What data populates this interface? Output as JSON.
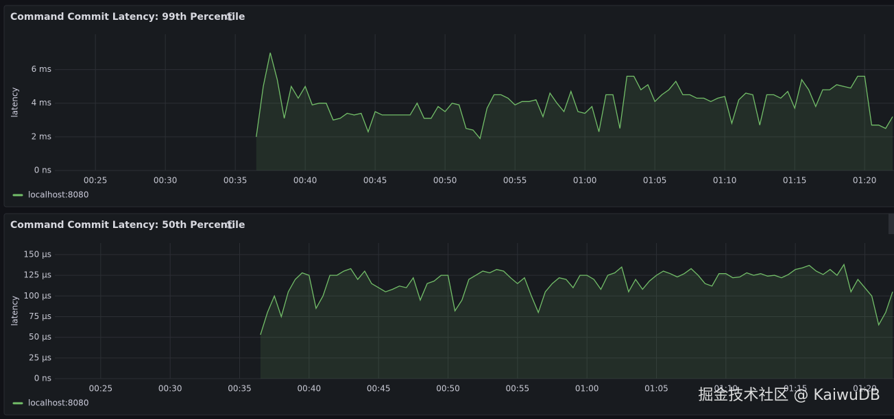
{
  "chart_data": [
    {
      "type": "line",
      "title": "Command Commit Latency: 99th Percentile",
      "y_label": "latency",
      "x": [
        36.5,
        37,
        37.5,
        38,
        38.5,
        39,
        39.5,
        40,
        40.5,
        41,
        41.5,
        42,
        42.5,
        43,
        43.5,
        44,
        44.5,
        45,
        45.5,
        46,
        46.5,
        47,
        47.5,
        48,
        48.5,
        49,
        49.5,
        50,
        50.5,
        51,
        51.5,
        52,
        52.5,
        53,
        53.5,
        54,
        54.5,
        55,
        55.5,
        56,
        56.5,
        57,
        57.5,
        58,
        58.5,
        59,
        59.5,
        60,
        60.5,
        61,
        61.5,
        62,
        62.5,
        63,
        63.5,
        64,
        64.5,
        65,
        65.5,
        66,
        66.5,
        67,
        67.5,
        68,
        68.5,
        69,
        69.5,
        70,
        70.5,
        71,
        71.5,
        72,
        72.5,
        73,
        73.5,
        74,
        74.5,
        75,
        75.5,
        76,
        76.5,
        77,
        77.5,
        78,
        78.5,
        79,
        79.5,
        80,
        80.5,
        81,
        81.5,
        82
      ],
      "series": [
        {
          "name": "localhost:8080",
          "color": "#73bf69",
          "values": [
            2.0,
            5.0,
            7.0,
            5.4,
            3.1,
            5.0,
            4.3,
            5.0,
            3.9,
            4.0,
            4.0,
            3.0,
            3.1,
            3.4,
            3.3,
            3.4,
            2.3,
            3.5,
            3.3,
            3.3,
            3.3,
            3.3,
            3.3,
            4.0,
            3.1,
            3.1,
            3.8,
            3.5,
            4.0,
            3.9,
            2.5,
            2.4,
            1.9,
            3.7,
            4.5,
            4.5,
            4.3,
            3.9,
            4.1,
            4.1,
            4.2,
            3.2,
            4.6,
            4.0,
            3.5,
            4.7,
            3.5,
            3.4,
            3.8,
            2.3,
            4.5,
            4.5,
            2.5,
            5.6,
            5.6,
            4.8,
            5.1,
            4.1,
            4.5,
            4.8,
            5.3,
            4.5,
            4.5,
            4.3,
            4.3,
            4.1,
            4.3,
            4.4,
            2.8,
            4.2,
            4.6,
            4.5,
            2.7,
            4.5,
            4.5,
            4.3,
            4.7,
            3.7,
            5.4,
            4.8,
            3.8,
            4.8,
            4.8,
            5.1,
            5.0,
            4.9,
            5.6,
            5.6,
            2.7,
            2.7,
            2.5,
            3.2
          ]
        }
      ],
      "xlim": [
        22.1,
        82.1
      ],
      "xticks": [
        {
          "value": 25,
          "label": "00:25"
        },
        {
          "value": 30,
          "label": "00:30"
        },
        {
          "value": 35,
          "label": "00:35"
        },
        {
          "value": 40,
          "label": "00:40"
        },
        {
          "value": 45,
          "label": "00:45"
        },
        {
          "value": 50,
          "label": "00:50"
        },
        {
          "value": 55,
          "label": "00:55"
        },
        {
          "value": 60,
          "label": "01:00"
        },
        {
          "value": 65,
          "label": "01:05"
        },
        {
          "value": 70,
          "label": "01:10"
        },
        {
          "value": 75,
          "label": "01:15"
        },
        {
          "value": 80,
          "label": "01:20"
        }
      ],
      "ylim": [
        0,
        8.1
      ],
      "yticks": [
        {
          "value": 0,
          "label": "0 ns"
        },
        {
          "value": 2,
          "label": "2 ms"
        },
        {
          "value": 4,
          "label": "4 ms"
        },
        {
          "value": 6,
          "label": "6 ms"
        }
      ],
      "grid": true,
      "legend": "bottom-left"
    },
    {
      "type": "line",
      "title": "Command Commit Latency: 50th Percentile",
      "y_label": "latency",
      "x": [
        36.5,
        37,
        37.5,
        38,
        38.5,
        39,
        39.5,
        40,
        40.5,
        41,
        41.5,
        42,
        42.5,
        43,
        43.5,
        44,
        44.5,
        45,
        45.5,
        46,
        46.5,
        47,
        47.5,
        48,
        48.5,
        49,
        49.5,
        50,
        50.5,
        51,
        51.5,
        52,
        52.5,
        53,
        53.5,
        54,
        54.5,
        55,
        55.5,
        56,
        56.5,
        57,
        57.5,
        58,
        58.5,
        59,
        59.5,
        60,
        60.5,
        61,
        61.5,
        62,
        62.5,
        63,
        63.5,
        64,
        64.5,
        65,
        65.5,
        66,
        66.5,
        67,
        67.5,
        68,
        68.5,
        69,
        69.5,
        70,
        70.5,
        71,
        71.5,
        72,
        72.5,
        73,
        73.5,
        74,
        74.5,
        75,
        75.5,
        76,
        76.5,
        77,
        77.5,
        78,
        78.5,
        79,
        79.5,
        80,
        80.5,
        81,
        81.5,
        82
      ],
      "series": [
        {
          "name": "localhost:8080",
          "color": "#73bf69",
          "values": [
            53,
            80,
            100,
            75,
            105,
            120,
            128,
            125,
            85,
            100,
            125,
            125,
            130,
            133,
            120,
            130,
            115,
            110,
            105,
            108,
            112,
            110,
            122,
            95,
            115,
            118,
            125,
            125,
            82,
            95,
            120,
            125,
            130,
            128,
            132,
            130,
            122,
            115,
            122,
            100,
            80,
            105,
            115,
            122,
            120,
            110,
            125,
            125,
            120,
            108,
            125,
            128,
            135,
            105,
            120,
            108,
            118,
            125,
            130,
            127,
            123,
            127,
            133,
            125,
            115,
            112,
            127,
            127,
            122,
            123,
            128,
            125,
            127,
            124,
            125,
            122,
            126,
            132,
            134,
            137,
            130,
            126,
            132,
            125,
            138,
            105,
            120,
            110,
            100,
            65,
            80,
            105
          ]
        }
      ],
      "xlim": [
        21.7,
        82.1
      ],
      "xticks": [
        {
          "value": 25,
          "label": "00:25"
        },
        {
          "value": 30,
          "label": "00:30"
        },
        {
          "value": 35,
          "label": "00:35"
        },
        {
          "value": 40,
          "label": "00:40"
        },
        {
          "value": 45,
          "label": "00:45"
        },
        {
          "value": 50,
          "label": "00:50"
        },
        {
          "value": 55,
          "label": "00:55"
        },
        {
          "value": 60,
          "label": "01:00"
        },
        {
          "value": 65,
          "label": "01:05"
        },
        {
          "value": 70,
          "label": "01:10"
        },
        {
          "value": 75,
          "label": "01:15"
        },
        {
          "value": 80,
          "label": "01:20"
        }
      ],
      "ylim": [
        0,
        164
      ],
      "yticks": [
        {
          "value": 0,
          "label": "0 ns"
        },
        {
          "value": 25,
          "label": "25 µs"
        },
        {
          "value": 50,
          "label": "50 µs"
        },
        {
          "value": 75,
          "label": "75 µs"
        },
        {
          "value": 100,
          "label": "100 µs"
        },
        {
          "value": 125,
          "label": "125 µs"
        },
        {
          "value": 150,
          "label": "150 µs"
        }
      ],
      "grid": true,
      "legend": "bottom-left"
    }
  ],
  "watermark": "掘金技术社区 @ KaiwuDB"
}
